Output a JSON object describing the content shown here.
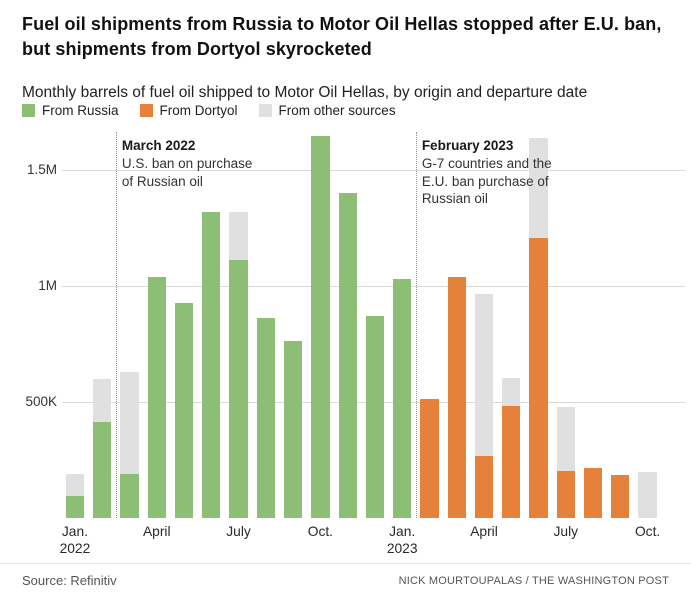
{
  "header": {
    "title": "Fuel oil shipments from Russia to Motor Oil Hellas stopped after E.U. ban, but shipments from Dortyol skyrocketed",
    "subtitle": "Monthly barrels of fuel oil shipped to Motor Oil Hellas, by origin and departure date"
  },
  "legend": {
    "items": [
      {
        "label": "From Russia",
        "color": "#8dbe76"
      },
      {
        "label": "From Dortyol",
        "color": "#e6813b"
      },
      {
        "label": "From other sources",
        "color": "#e0e0e0"
      }
    ]
  },
  "chart_data": {
    "type": "bar",
    "stacked": true,
    "title": "Monthly barrels of fuel oil shipped to Motor Oil Hellas, by origin and departure date",
    "categories": [
      "Jan. 2022",
      "Feb. 2022",
      "March 2022",
      "April 2022",
      "May 2022",
      "June 2022",
      "July 2022",
      "Aug. 2022",
      "Sept. 2022",
      "Oct. 2022",
      "Nov. 2022",
      "Dec. 2022",
      "Jan. 2023",
      "Feb. 2023",
      "March 2023",
      "April 2023",
      "May 2023",
      "June 2023",
      "July 2023",
      "Aug. 2023",
      "Sept. 2023",
      "Oct. 2023"
    ],
    "series": [
      {
        "name": "From Russia",
        "color": "#8dbe76",
        "values": [
          95000,
          415000,
          190000,
          1040000,
          925000,
          1320000,
          1110000,
          860000,
          765000,
          1645000,
          1400000,
          870000,
          1030000,
          0,
          0,
          0,
          0,
          0,
          0,
          0,
          0,
          0
        ]
      },
      {
        "name": "From Dortyol",
        "color": "#e6813b",
        "values": [
          0,
          0,
          0,
          0,
          0,
          0,
          0,
          0,
          0,
          0,
          0,
          0,
          0,
          515000,
          1040000,
          270000,
          485000,
          1205000,
          205000,
          215000,
          185000,
          0
        ]
      },
      {
        "name": "From other sources",
        "color": "#e0e0e0",
        "values": [
          95000,
          185000,
          440000,
          0,
          0,
          0,
          210000,
          0,
          0,
          0,
          0,
          0,
          0,
          0,
          0,
          695000,
          120000,
          430000,
          275000,
          0,
          0,
          200000
        ]
      }
    ],
    "xlabel": "",
    "ylabel": "",
    "ylim": [
      0,
      1675000
    ],
    "grid": true,
    "legend_position": "top",
    "yticks": [
      {
        "value": 500000,
        "label": "500K"
      },
      {
        "value": 1000000,
        "label": "1M"
      },
      {
        "value": 1500000,
        "label": "1.5M"
      }
    ],
    "xticks": [
      {
        "index": 0,
        "label": "Jan.",
        "sublabel": "2022"
      },
      {
        "index": 3,
        "label": "April"
      },
      {
        "index": 6,
        "label": "July"
      },
      {
        "index": 9,
        "label": "Oct."
      },
      {
        "index": 12,
        "label": "Jan.",
        "sublabel": "2023"
      },
      {
        "index": 15,
        "label": "April"
      },
      {
        "index": 18,
        "label": "July"
      },
      {
        "index": 21,
        "label": "Oct."
      }
    ],
    "annotations": [
      {
        "month_index": 2,
        "title": "March 2022",
        "lines": [
          "U.S. ban on purchase",
          "of Russian oil"
        ]
      },
      {
        "month_index": 13,
        "title": "February 2023",
        "lines": [
          "G-7 countries and the",
          "E.U. ban purchase of",
          "Russian oil"
        ]
      }
    ]
  },
  "footer": {
    "source": "Source: Refinitiv",
    "credit": "NICK MOURTOUPALAS / THE WASHINGTON POST"
  }
}
